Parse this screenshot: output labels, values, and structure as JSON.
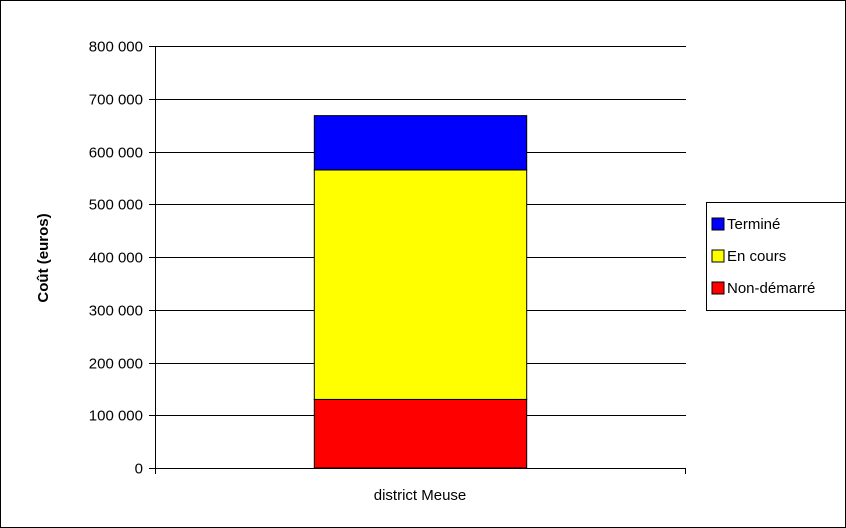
{
  "chart_data": {
    "type": "bar",
    "stacked": true,
    "categories": [
      "district Meuse"
    ],
    "series": [
      {
        "name": "Non-démarré",
        "values": [
          130000
        ],
        "color": "#ff0000"
      },
      {
        "name": "En cours",
        "values": [
          435000
        ],
        "color": "#ffff00"
      },
      {
        "name": "Terminé",
        "values": [
          103000
        ],
        "color": "#0000ff"
      }
    ],
    "legend_order": [
      "Terminé",
      "En cours",
      "Non-démarré"
    ],
    "ylabel": "Coût (euros)",
    "ylim": [
      0,
      800000
    ],
    "yticks": [
      0,
      100000,
      200000,
      300000,
      400000,
      500000,
      600000,
      700000,
      800000
    ],
    "ytick_labels": [
      "0",
      "100 000",
      "200 000",
      "300 000",
      "400 000",
      "500 000",
      "600 000",
      "700 000",
      "800 000"
    ],
    "grid": true,
    "legend_position": "right"
  }
}
